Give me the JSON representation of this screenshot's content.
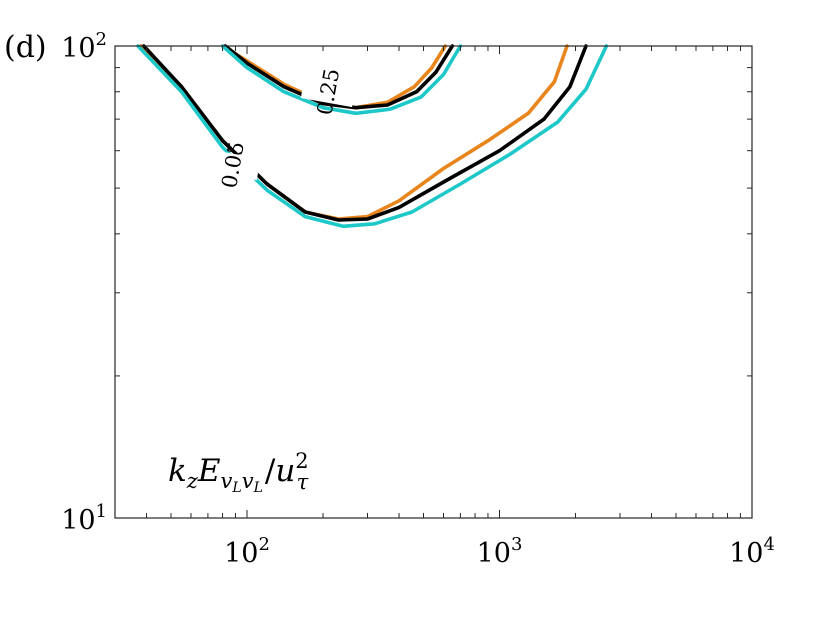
{
  "panel_label": "(d)",
  "chart_data": {
    "type": "line",
    "title": "",
    "xlabel": "",
    "ylabel": "",
    "xscale": "log",
    "yscale": "log",
    "xlim": [
      30,
      10000
    ],
    "ylim": [
      10,
      100
    ],
    "grid": false,
    "x_ticks": [
      {
        "value": 100,
        "base": "10",
        "exp": "2"
      },
      {
        "value": 1000,
        "base": "10",
        "exp": "3"
      },
      {
        "value": 10000,
        "base": "10",
        "exp": "4"
      }
    ],
    "y_ticks": [
      {
        "value": 10,
        "base": "10",
        "exp": "1"
      },
      {
        "value": 100,
        "base": "10",
        "exp": "2"
      }
    ],
    "annotation": {
      "k": "k",
      "k_sub": "z",
      "E": "E",
      "E_sub1": "v",
      "E_sub1_sub": "L",
      "E_sub2": "v",
      "E_sub2_sub": "L",
      "slash": "/",
      "u": "u",
      "u_sup": "2",
      "u_sub": "τ"
    },
    "contour_labels": [
      {
        "text": "0.25",
        "x": 210,
        "y": 80
      },
      {
        "text": "0.05",
        "x": 88,
        "y": 56
      }
    ],
    "series": [
      {
        "color": "#e8851c",
        "contours": [
          {
            "level": 0.25,
            "x": [
              80,
              100,
              140,
              200,
              270,
              360,
              460,
              540,
              610
            ],
            "y": [
              100,
              93,
              83,
              76,
              74,
              76,
              82,
              90,
              100
            ]
          },
          {
            "level": 0.05,
            "x": [
              38,
              55,
              80,
              120,
              170,
              230,
              300,
              400,
              600,
              900,
              1300,
              1650,
              1850
            ],
            "y": [
              100,
              82,
              63,
              51,
              44.5,
              43,
              43.5,
              47,
              55,
              63,
              72,
              84,
              100
            ]
          }
        ]
      },
      {
        "color": "#000000",
        "contours": [
          {
            "level": 0.25,
            "x": [
              82,
              100,
              140,
              200,
              270,
              360,
              470,
              560,
              650
            ],
            "y": [
              100,
              92,
              82,
              75.5,
              74,
              75,
              80,
              88,
              100
            ]
          },
          {
            "level": 0.05,
            "x": [
              39,
              55,
              80,
              120,
              170,
              230,
              300,
              400,
              620,
              1000,
              1500,
              1900,
              2200
            ],
            "y": [
              100,
              82,
              63,
              51,
              44.5,
              42.8,
              43,
              45.5,
              52,
              60,
              70,
              82,
              100
            ]
          }
        ]
      },
      {
        "color": "#1ec8c8",
        "contours": [
          {
            "level": 0.25,
            "x": [
              80,
              100,
              140,
              200,
              270,
              370,
              490,
              600,
              700
            ],
            "y": [
              100,
              90,
              80,
              74,
              72,
              73.5,
              78,
              87,
              100
            ]
          },
          {
            "level": 0.05,
            "x": [
              37,
              55,
              80,
              120,
              170,
              240,
              320,
              450,
              700,
              1100,
              1700,
              2200,
              2650
            ],
            "y": [
              100,
              80,
              61,
              49.5,
              43.5,
              41.5,
              42,
              44.5,
              51,
              59,
              69,
              81,
              100
            ]
          }
        ]
      }
    ]
  }
}
